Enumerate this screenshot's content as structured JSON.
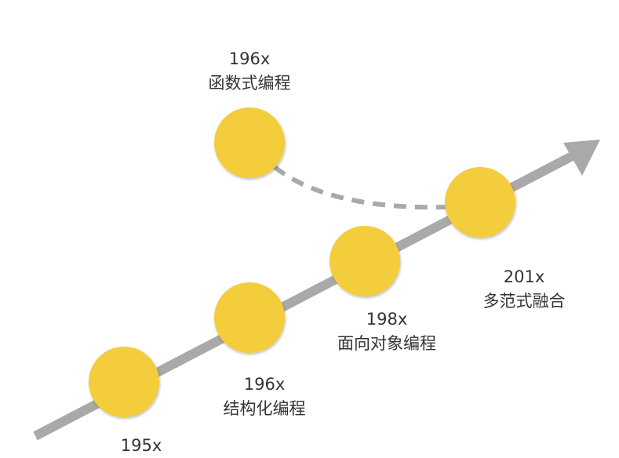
{
  "colors": {
    "node": "#F3CD3A",
    "line": "#A9A9A9",
    "text": "#333333"
  },
  "nodes": [
    {
      "year": "195x",
      "name": ""
    },
    {
      "year": "196x",
      "name": "结构化编程"
    },
    {
      "year": "198x",
      "name": "面向对象编程"
    },
    {
      "year": "201x",
      "name": "多范式融合"
    },
    {
      "year": "196x",
      "name": "函数式编程"
    }
  ]
}
